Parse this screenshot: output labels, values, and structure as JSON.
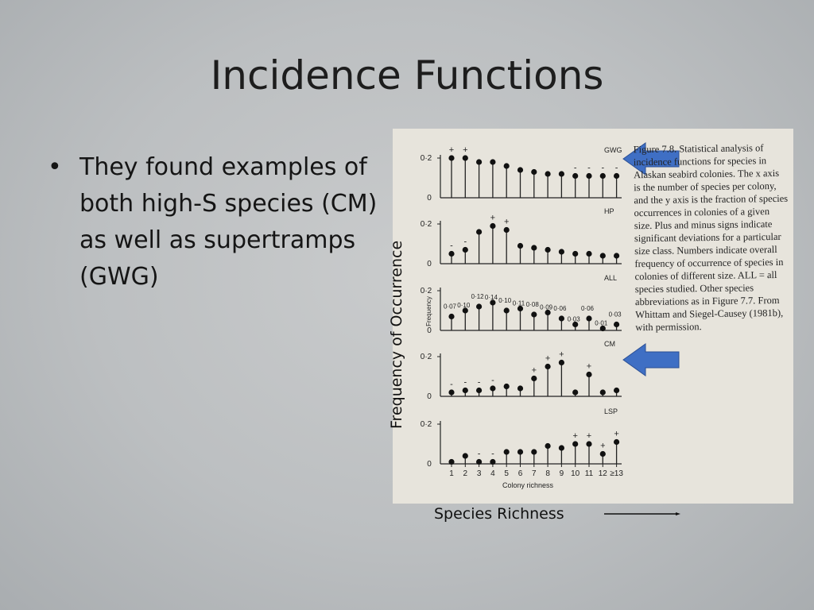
{
  "slide": {
    "title": "Incidence Functions",
    "bullets": [
      "They found examples of both high-S species (CM) as well as supertramps (GWG)"
    ],
    "y_axis_label": "Frequency of Occurrence",
    "x_axis_label": "Species Richness"
  },
  "figure": {
    "caption": "Figure 7.8. Statistical analysis of incidence functions for species in Alaskan seabird colonies. The x axis is the number of species per colony, and the y axis is the fraction of species occurrences in colonies of a given size. Plus and minus signs indicate significant deviations for a particular size class. Numbers indicate overall frequency of occurrence of species in colonies of different size. ALL = all species studied. Other species abbreviations as in Figure 7.7. From Whittam and Siegel-Causey (1981b), with permission.",
    "inner_y_label": "Frequency",
    "inner_x_label": "Colony richness",
    "x_ticks": [
      "1",
      "2",
      "3",
      "4",
      "5",
      "6",
      "7",
      "8",
      "9",
      "10",
      "11",
      "12",
      "≥13"
    ],
    "tick_top": "0·2",
    "tick_zero": "0",
    "arrow_color": "#3f6fc4",
    "panels": [
      {
        "name": "GWG",
        "values": [
          0.2,
          0.2,
          0.18,
          0.18,
          0.16,
          0.14,
          0.13,
          0.12,
          0.12,
          0.11,
          0.11,
          0.11,
          0.11
        ],
        "signs": [
          "+",
          "+",
          "",
          "",
          "",
          "",
          "",
          "",
          "",
          "-",
          "-",
          "-",
          "-"
        ]
      },
      {
        "name": "HP",
        "values": [
          0.05,
          0.07,
          0.16,
          0.19,
          0.17,
          0.09,
          0.08,
          0.07,
          0.06,
          0.05,
          0.05,
          0.04,
          0.04
        ],
        "signs": [
          "-",
          "-",
          "",
          "+",
          "+",
          "",
          "",
          "",
          "",
          "",
          "",
          "",
          ""
        ]
      },
      {
        "name": "ALL",
        "values": [
          0.07,
          0.1,
          0.12,
          0.14,
          0.1,
          0.11,
          0.08,
          0.09,
          0.06,
          0.03,
          0.06,
          0.01,
          0.03
        ],
        "labels": [
          "0·07",
          "0·10",
          "0·12",
          "0·14",
          "0·10",
          "0·11",
          "0·08",
          "0·09",
          "0·06",
          "0·03",
          "0·06",
          "0·01",
          "0·03"
        ]
      },
      {
        "name": "CM",
        "values": [
          0.02,
          0.03,
          0.03,
          0.04,
          0.05,
          0.04,
          0.09,
          0.15,
          0.17,
          0.02,
          0.11,
          0.02,
          0.03
        ],
        "signs": [
          "-",
          "-",
          "-",
          "-",
          "",
          "",
          "+",
          "+",
          "+",
          "",
          "+",
          "",
          ""
        ]
      },
      {
        "name": "LSP",
        "values": [
          0.01,
          0.04,
          0.01,
          0.01,
          0.06,
          0.06,
          0.06,
          0.09,
          0.08,
          0.1,
          0.1,
          0.05,
          0.11
        ],
        "signs": [
          "",
          "",
          "-",
          "-",
          "",
          "",
          "",
          "",
          "",
          "+",
          "+",
          "+",
          "+"
        ]
      }
    ]
  }
}
